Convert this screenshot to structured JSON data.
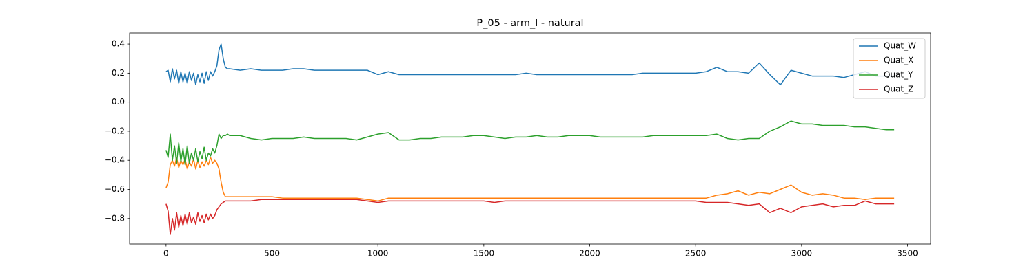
{
  "chart_data": {
    "type": "line",
    "title": "P_05 - arm_l - natural",
    "x": [
      0,
      10,
      20,
      30,
      40,
      50,
      60,
      70,
      80,
      90,
      100,
      110,
      120,
      130,
      140,
      150,
      160,
      170,
      180,
      190,
      200,
      210,
      220,
      230,
      240,
      250,
      260,
      270,
      280,
      290,
      300,
      350,
      400,
      450,
      500,
      550,
      600,
      650,
      700,
      750,
      800,
      850,
      900,
      950,
      1000,
      1050,
      1100,
      1150,
      1200,
      1250,
      1300,
      1350,
      1400,
      1450,
      1500,
      1550,
      1600,
      1650,
      1700,
      1750,
      1800,
      1850,
      1900,
      1950,
      2000,
      2050,
      2100,
      2150,
      2200,
      2250,
      2300,
      2350,
      2400,
      2450,
      2500,
      2550,
      2600,
      2650,
      2700,
      2750,
      2800,
      2850,
      2900,
      2950,
      3000,
      3050,
      3100,
      3150,
      3200,
      3250,
      3300,
      3350,
      3400,
      3437
    ],
    "series": [
      {
        "name": "Quat_W",
        "color": "#1f77b4",
        "values": [
          0.21,
          0.22,
          0.14,
          0.23,
          0.16,
          0.22,
          0.13,
          0.21,
          0.14,
          0.2,
          0.13,
          0.21,
          0.15,
          0.2,
          0.12,
          0.19,
          0.14,
          0.2,
          0.13,
          0.21,
          0.15,
          0.21,
          0.18,
          0.21,
          0.25,
          0.36,
          0.4,
          0.3,
          0.24,
          0.23,
          0.23,
          0.22,
          0.23,
          0.22,
          0.22,
          0.22,
          0.23,
          0.23,
          0.22,
          0.22,
          0.22,
          0.22,
          0.22,
          0.22,
          0.19,
          0.21,
          0.19,
          0.19,
          0.19,
          0.19,
          0.19,
          0.19,
          0.19,
          0.19,
          0.19,
          0.19,
          0.19,
          0.19,
          0.2,
          0.19,
          0.19,
          0.19,
          0.19,
          0.19,
          0.19,
          0.19,
          0.19,
          0.19,
          0.19,
          0.2,
          0.2,
          0.2,
          0.2,
          0.2,
          0.2,
          0.21,
          0.24,
          0.21,
          0.21,
          0.2,
          0.27,
          0.19,
          0.12,
          0.22,
          0.2,
          0.18,
          0.18,
          0.18,
          0.17,
          0.19,
          0.21,
          0.18,
          0.18,
          0.18
        ]
      },
      {
        "name": "Quat_X",
        "color": "#ff7f0e",
        "values": [
          -0.59,
          -0.55,
          -0.43,
          -0.4,
          -0.44,
          -0.38,
          -0.45,
          -0.4,
          -0.43,
          -0.39,
          -0.46,
          -0.41,
          -0.44,
          -0.39,
          -0.46,
          -0.4,
          -0.45,
          -0.41,
          -0.44,
          -0.4,
          -0.43,
          -0.38,
          -0.42,
          -0.4,
          -0.42,
          -0.46,
          -0.55,
          -0.62,
          -0.65,
          -0.65,
          -0.65,
          -0.65,
          -0.65,
          -0.65,
          -0.65,
          -0.66,
          -0.66,
          -0.66,
          -0.66,
          -0.66,
          -0.66,
          -0.66,
          -0.66,
          -0.67,
          -0.68,
          -0.66,
          -0.66,
          -0.66,
          -0.66,
          -0.66,
          -0.66,
          -0.66,
          -0.66,
          -0.66,
          -0.66,
          -0.66,
          -0.66,
          -0.66,
          -0.66,
          -0.66,
          -0.66,
          -0.66,
          -0.66,
          -0.66,
          -0.66,
          -0.66,
          -0.66,
          -0.66,
          -0.66,
          -0.66,
          -0.66,
          -0.66,
          -0.66,
          -0.66,
          -0.66,
          -0.66,
          -0.64,
          -0.63,
          -0.61,
          -0.64,
          -0.62,
          -0.63,
          -0.6,
          -0.57,
          -0.62,
          -0.64,
          -0.63,
          -0.64,
          -0.66,
          -0.66,
          -0.67,
          -0.66,
          -0.66,
          -0.66
        ]
      },
      {
        "name": "Quat_Y",
        "color": "#2ca02c",
        "values": [
          -0.33,
          -0.38,
          -0.22,
          -0.4,
          -0.3,
          -0.42,
          -0.28,
          -0.41,
          -0.32,
          -0.43,
          -0.3,
          -0.42,
          -0.35,
          -0.4,
          -0.32,
          -0.41,
          -0.34,
          -0.39,
          -0.31,
          -0.4,
          -0.35,
          -0.37,
          -0.32,
          -0.35,
          -0.3,
          -0.22,
          -0.25,
          -0.23,
          -0.23,
          -0.22,
          -0.23,
          -0.23,
          -0.25,
          -0.26,
          -0.25,
          -0.25,
          -0.25,
          -0.24,
          -0.25,
          -0.25,
          -0.25,
          -0.25,
          -0.26,
          -0.24,
          -0.22,
          -0.21,
          -0.26,
          -0.26,
          -0.25,
          -0.25,
          -0.24,
          -0.24,
          -0.24,
          -0.23,
          -0.23,
          -0.24,
          -0.25,
          -0.24,
          -0.24,
          -0.23,
          -0.24,
          -0.24,
          -0.23,
          -0.23,
          -0.23,
          -0.24,
          -0.24,
          -0.24,
          -0.24,
          -0.24,
          -0.23,
          -0.23,
          -0.23,
          -0.23,
          -0.23,
          -0.23,
          -0.22,
          -0.25,
          -0.26,
          -0.25,
          -0.25,
          -0.2,
          -0.17,
          -0.13,
          -0.15,
          -0.15,
          -0.16,
          -0.16,
          -0.16,
          -0.17,
          -0.17,
          -0.18,
          -0.19,
          -0.19
        ]
      },
      {
        "name": "Quat_Z",
        "color": "#d62728",
        "values": [
          -0.7,
          -0.75,
          -0.91,
          -0.8,
          -0.88,
          -0.76,
          -0.86,
          -0.78,
          -0.85,
          -0.77,
          -0.84,
          -0.76,
          -0.83,
          -0.79,
          -0.84,
          -0.76,
          -0.82,
          -0.78,
          -0.83,
          -0.77,
          -0.81,
          -0.77,
          -0.8,
          -0.78,
          -0.74,
          -0.72,
          -0.7,
          -0.69,
          -0.68,
          -0.68,
          -0.68,
          -0.68,
          -0.68,
          -0.67,
          -0.67,
          -0.67,
          -0.67,
          -0.67,
          -0.67,
          -0.67,
          -0.67,
          -0.67,
          -0.67,
          -0.68,
          -0.69,
          -0.68,
          -0.68,
          -0.68,
          -0.68,
          -0.68,
          -0.68,
          -0.68,
          -0.68,
          -0.68,
          -0.68,
          -0.69,
          -0.68,
          -0.68,
          -0.68,
          -0.68,
          -0.68,
          -0.68,
          -0.68,
          -0.68,
          -0.68,
          -0.68,
          -0.68,
          -0.68,
          -0.68,
          -0.68,
          -0.68,
          -0.68,
          -0.68,
          -0.68,
          -0.68,
          -0.69,
          -0.69,
          -0.69,
          -0.7,
          -0.71,
          -0.7,
          -0.76,
          -0.73,
          -0.76,
          -0.72,
          -0.71,
          -0.7,
          -0.72,
          -0.71,
          -0.71,
          -0.68,
          -0.7,
          -0.7,
          -0.7
        ]
      }
    ],
    "xlim": [
      -172,
      3609
    ],
    "ylim": [
      -0.976,
      0.476
    ],
    "xticks": [
      0,
      500,
      1000,
      1500,
      2000,
      2500,
      3000,
      3500
    ],
    "yticks": [
      0.4,
      0.2,
      {
        "value": 0,
        "label": "0.0"
      },
      {
        "value": -0.2,
        "label": "−0.2"
      },
      {
        "value": -0.4,
        "label": "−0.4"
      },
      {
        "value": -0.6,
        "label": "−0.6"
      },
      {
        "value": -0.8,
        "label": "−0.8"
      }
    ],
    "legend": "upper right",
    "grid": false
  }
}
